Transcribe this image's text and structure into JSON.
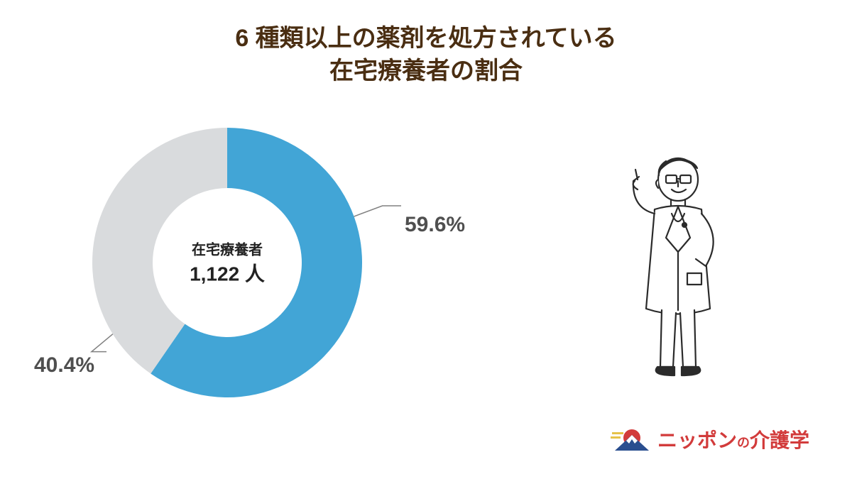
{
  "title": {
    "line1": "6 種類以上の薬剤を処方されている",
    "line2": "在宅療養者の割合",
    "color": "#4a2e12",
    "fontsize": 34
  },
  "chart": {
    "type": "donut",
    "outer_radius": 190,
    "inner_radius": 105,
    "background_color": "#ffffff",
    "slices": [
      {
        "value": 59.6,
        "color": "#42a5d6",
        "label": "59.6%"
      },
      {
        "value": 40.4,
        "color": "#d9dbdd",
        "label": "40.4%"
      }
    ],
    "start_angle_deg": -90,
    "center_label_top": "在宅療養者",
    "center_label_bottom": "1,122 人",
    "center_label_top_fontsize": 20,
    "center_label_bottom_fontsize": 28,
    "center_label_color": "#222222",
    "pct_label_fontsize": 30,
    "pct_label_color": "#4f4f4f",
    "leader_color": "#808080"
  },
  "percent_labels": {
    "primary": "59.6%",
    "secondary": "40.4%"
  },
  "logo": {
    "text_part1": "ニッポン",
    "text_part2": "の",
    "text_part3": "介護学",
    "color_main": "#d23b3b",
    "color_sub": "#d23b3b",
    "fontsize_main": 28,
    "fontsize_sub": 18,
    "icon_sun_color": "#d23b3b",
    "icon_mountain_color": "#2a4e8f",
    "icon_stripe_color": "#e6c24a"
  },
  "illustration": {
    "name": "doctor-icon",
    "stroke": "#2b2b2b",
    "fill": "#ffffff"
  }
}
